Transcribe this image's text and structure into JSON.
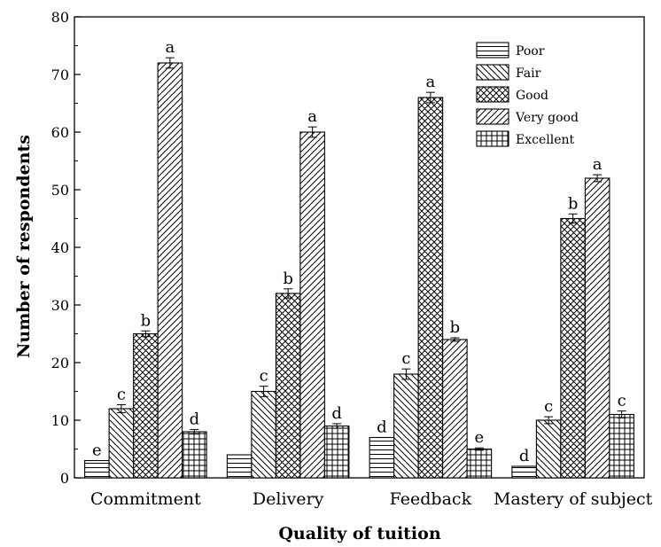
{
  "chart_data": {
    "type": "bar",
    "title": "",
    "xlabel": "Quality of tuition",
    "ylabel": "Number of respondents",
    "ylim": [
      0,
      80
    ],
    "yticks": [
      0,
      10,
      20,
      30,
      40,
      50,
      60,
      70,
      80
    ],
    "grid": false,
    "legend_position": "top-right",
    "categories": [
      "Commitment",
      "Delivery",
      "Feedback",
      "Mastery of subject"
    ],
    "series": [
      {
        "name": "Poor",
        "pattern": "horizontal-lines",
        "values": [
          3,
          4,
          7,
          2
        ],
        "errors": [
          0,
          0,
          0,
          0
        ],
        "letters": [
          "e",
          "",
          "d",
          "d"
        ]
      },
      {
        "name": "Fair",
        "pattern": "back-diagonal-lines",
        "values": [
          12,
          15,
          18,
          10
        ],
        "errors": [
          0.7,
          0.9,
          0.9,
          0.6
        ],
        "letters": [
          "c",
          "c",
          "c",
          "c"
        ]
      },
      {
        "name": "Good",
        "pattern": "cross-hatch",
        "values": [
          25,
          32,
          66,
          45
        ],
        "errors": [
          0.5,
          0.8,
          0.9,
          0.8
        ],
        "letters": [
          "b",
          "b",
          "a",
          "b"
        ]
      },
      {
        "name": "Very good",
        "pattern": "forward-diagonal-lines",
        "values": [
          72,
          60,
          24,
          52
        ],
        "errors": [
          0.9,
          0.9,
          0.3,
          0.6
        ],
        "letters": [
          "a",
          "a",
          "b",
          "a"
        ]
      },
      {
        "name": "Excellent",
        "pattern": "grid",
        "values": [
          8,
          9,
          5,
          11
        ],
        "errors": [
          0.4,
          0.4,
          0.2,
          0.6
        ],
        "letters": [
          "d",
          "d",
          "e",
          "c"
        ]
      }
    ]
  }
}
